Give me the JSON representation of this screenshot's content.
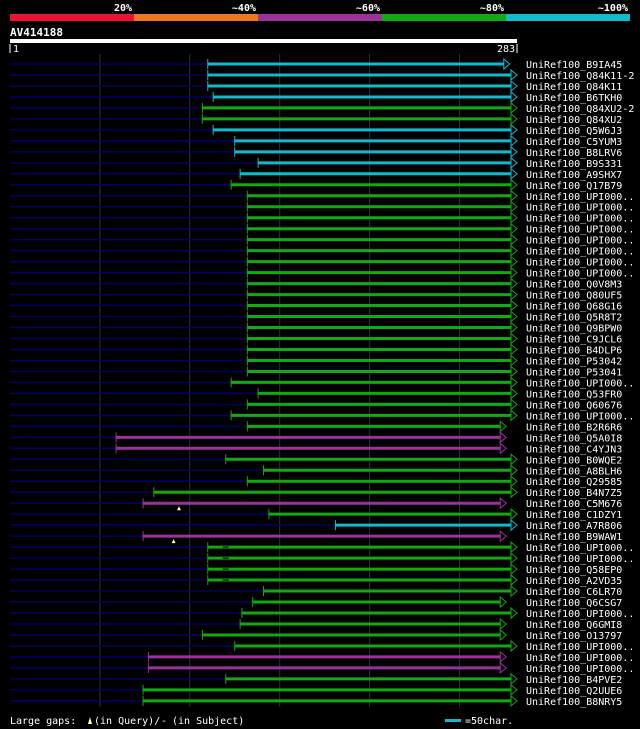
{
  "legend_bands": [
    {
      "label": "20%",
      "color": "#ee1133"
    },
    {
      "label": "~40%",
      "color": "#ee7722"
    },
    {
      "label": "~60%",
      "color": "#993399"
    },
    {
      "label": "~80%",
      "color": "#11aa11"
    },
    {
      "label": "~100%",
      "color": "#11bbcc"
    }
  ],
  "query": {
    "name": "AV414188",
    "start_label": "1",
    "end_label": "283"
  },
  "footer": {
    "gaps_prefix": "Large gaps:",
    "query_label": "(in Query)/",
    "dash": "-",
    "subject_label": "(in Subject)",
    "scale_label": "=50char."
  },
  "colors": {
    "faint": "#000066",
    "grid": "#223344",
    "hsp_text": "#ffffff",
    "label_text": "#ffffff"
  },
  "chart_data": {
    "type": "alignment",
    "x_range": [
      1,
      283
    ],
    "scale_chars": 50,
    "hits": [
      {
        "name": "UniRef100_B9IA45",
        "start": 111,
        "end": 279,
        "band": "~100%",
        "arrow": true
      },
      {
        "name": "UniRef100_Q84K11-2",
        "start": 111,
        "end": 283,
        "band": "~100%",
        "arrow": true
      },
      {
        "name": "UniRef100_Q84K11",
        "start": 111,
        "end": 283,
        "band": "~100%",
        "arrow": true
      },
      {
        "name": "UniRef100_B6TKH0",
        "start": 114,
        "end": 283,
        "band": "~100%",
        "arrow": true
      },
      {
        "name": "UniRef100_Q84XU2-2",
        "start": 108,
        "end": 283,
        "band": "~80%",
        "arrow": true
      },
      {
        "name": "UniRef100_Q84XU2",
        "start": 108,
        "end": 283,
        "band": "~80%",
        "arrow": true
      },
      {
        "name": "UniRef100_Q5W6J3",
        "start": 114,
        "end": 283,
        "band": "~100%",
        "arrow": true
      },
      {
        "name": "UniRef100_C5YUM3",
        "start": 126,
        "end": 283,
        "band": "~100%",
        "arrow": true
      },
      {
        "name": "UniRef100_B8LRV6",
        "start": 126,
        "end": 283,
        "band": "~100%",
        "arrow": true
      },
      {
        "name": "UniRef100_B9S331",
        "start": 139,
        "end": 283,
        "band": "~100%",
        "arrow": true
      },
      {
        "name": "UniRef100_A9SHX7",
        "start": 129,
        "end": 283,
        "band": "~100%",
        "arrow": true
      },
      {
        "name": "UniRef100_Q17B79",
        "start": 124,
        "end": 283,
        "band": "~80%",
        "arrow": true
      },
      {
        "name": "UniRef100_UPI000..",
        "start": 133,
        "end": 283,
        "band": "~80%",
        "arrow": true
      },
      {
        "name": "UniRef100_UPI000..",
        "start": 133,
        "end": 283,
        "band": "~80%",
        "arrow": true
      },
      {
        "name": "UniRef100_UPI000..",
        "start": 133,
        "end": 283,
        "band": "~80%",
        "arrow": true
      },
      {
        "name": "UniRef100_UPI000..",
        "start": 133,
        "end": 283,
        "band": "~80%",
        "arrow": true
      },
      {
        "name": "UniRef100_UPI000..",
        "start": 133,
        "end": 283,
        "band": "~80%",
        "arrow": true
      },
      {
        "name": "UniRef100_UPI000..",
        "start": 133,
        "end": 283,
        "band": "~80%",
        "arrow": true
      },
      {
        "name": "UniRef100_UPI000..",
        "start": 133,
        "end": 283,
        "band": "~80%",
        "arrow": true
      },
      {
        "name": "UniRef100_UPI000..",
        "start": 133,
        "end": 283,
        "band": "~80%",
        "arrow": true
      },
      {
        "name": "UniRef100_Q0V8M3",
        "start": 133,
        "end": 283,
        "band": "~80%",
        "arrow": true
      },
      {
        "name": "UniRef100_Q80UF5",
        "start": 133,
        "end": 283,
        "band": "~80%",
        "arrow": true
      },
      {
        "name": "UniRef100_Q68G16",
        "start": 133,
        "end": 283,
        "band": "~80%",
        "arrow": true
      },
      {
        "name": "UniRef100_Q5R8T2",
        "start": 133,
        "end": 283,
        "band": "~80%",
        "arrow": true
      },
      {
        "name": "UniRef100_Q9BPW0",
        "start": 133,
        "end": 283,
        "band": "~80%",
        "arrow": true
      },
      {
        "name": "UniRef100_C9JCL6",
        "start": 133,
        "end": 283,
        "band": "~80%",
        "arrow": true
      },
      {
        "name": "UniRef100_B4DLP6",
        "start": 133,
        "end": 283,
        "band": "~80%",
        "arrow": true
      },
      {
        "name": "UniRef100_P53042",
        "start": 133,
        "end": 283,
        "band": "~80%",
        "arrow": true
      },
      {
        "name": "UniRef100_P53041",
        "start": 133,
        "end": 283,
        "band": "~80%",
        "arrow": true
      },
      {
        "name": "UniRef100_UPI000..",
        "start": 124,
        "end": 283,
        "band": "~80%",
        "arrow": true
      },
      {
        "name": "UniRef100_Q53FR0",
        "start": 139,
        "end": 283,
        "band": "~80%",
        "arrow": true
      },
      {
        "name": "UniRef100_Q60676",
        "start": 133,
        "end": 283,
        "band": "~80%",
        "arrow": true
      },
      {
        "name": "UniRef100_UPI000..",
        "start": 124,
        "end": 283,
        "band": "~80%",
        "arrow": true
      },
      {
        "name": "UniRef100_B2R6R6",
        "start": 133,
        "end": 277,
        "band": "~80%",
        "arrow": true
      },
      {
        "name": "UniRef100_Q5A0I8",
        "start": 60,
        "end": 277,
        "band": "~60%",
        "arrow": true
      },
      {
        "name": "UniRef100_C4YJN3",
        "start": 60,
        "end": 277,
        "band": "~60%",
        "arrow": true
      },
      {
        "name": "UniRef100_B0WQE2",
        "start": 121,
        "end": 283,
        "band": "~80%",
        "arrow": true
      },
      {
        "name": "UniRef100_A8BLH6",
        "start": 142,
        "end": 283,
        "band": "~80%",
        "arrow": true
      },
      {
        "name": "UniRef100_Q29585",
        "start": 133,
        "end": 283,
        "band": "~80%",
        "arrow": true
      },
      {
        "name": "UniRef100_B4N7Z5",
        "start": 81,
        "end": 283,
        "band": "~80%",
        "arrow": true
      },
      {
        "name": "UniRef100_C5M676",
        "start": 75,
        "end": 277,
        "band": "~60%",
        "arrow": true,
        "query_gap": 95
      },
      {
        "name": "UniRef100_C1DZY1",
        "start": 145,
        "end": 283,
        "band": "~80%",
        "arrow": true
      },
      {
        "name": "UniRef100_A7R806",
        "start": 182,
        "end": 283,
        "band": "~100%",
        "arrow": true
      },
      {
        "name": "UniRef100_B9WAW1",
        "start": 75,
        "end": 277,
        "band": "~60%",
        "arrow": true,
        "query_gap": 92
      },
      {
        "name": "UniRef100_UPI000..",
        "start": 111,
        "end": 283,
        "band": "~80%",
        "arrow": true,
        "subject_gap": 121
      },
      {
        "name": "UniRef100_UPI000..",
        "start": 111,
        "end": 283,
        "band": "~80%",
        "arrow": true,
        "subject_gap": 121
      },
      {
        "name": "UniRef100_Q58EP0",
        "start": 111,
        "end": 283,
        "band": "~80%",
        "arrow": true,
        "subject_gap": 121
      },
      {
        "name": "UniRef100_A2VD35",
        "start": 111,
        "end": 283,
        "band": "~80%",
        "arrow": true,
        "subject_gap": 121
      },
      {
        "name": "UniRef100_C6LR70",
        "start": 142,
        "end": 283,
        "band": "~80%",
        "arrow": true
      },
      {
        "name": "UniRef100_Q6CSG7",
        "start": 136,
        "end": 277,
        "band": "~80%",
        "arrow": true
      },
      {
        "name": "UniRef100_UPI000..",
        "start": 130,
        "end": 283,
        "band": "~80%",
        "arrow": true
      },
      {
        "name": "UniRef100_Q6GMI8",
        "start": 129,
        "end": 277,
        "band": "~80%",
        "arrow": true
      },
      {
        "name": "UniRef100_O13797",
        "start": 108,
        "end": 277,
        "band": "~80%",
        "arrow": true
      },
      {
        "name": "UniRef100_UPI000..",
        "start": 126,
        "end": 283,
        "band": "~80%",
        "arrow": true
      },
      {
        "name": "UniRef100_UPI000..",
        "start": 78,
        "end": 277,
        "band": "~60%",
        "arrow": true
      },
      {
        "name": "UniRef100_UPI000..",
        "start": 78,
        "end": 277,
        "band": "~60%",
        "arrow": true
      },
      {
        "name": "UniRef100_B4PVE2",
        "start": 121,
        "end": 283,
        "band": "~80%",
        "arrow": true
      },
      {
        "name": "UniRef100_Q2UUE6",
        "start": 75,
        "end": 283,
        "band": "~80%",
        "arrow": true
      },
      {
        "name": "UniRef100_B8NRY5",
        "start": 75,
        "end": 283,
        "band": "~80%",
        "arrow": true
      }
    ]
  }
}
